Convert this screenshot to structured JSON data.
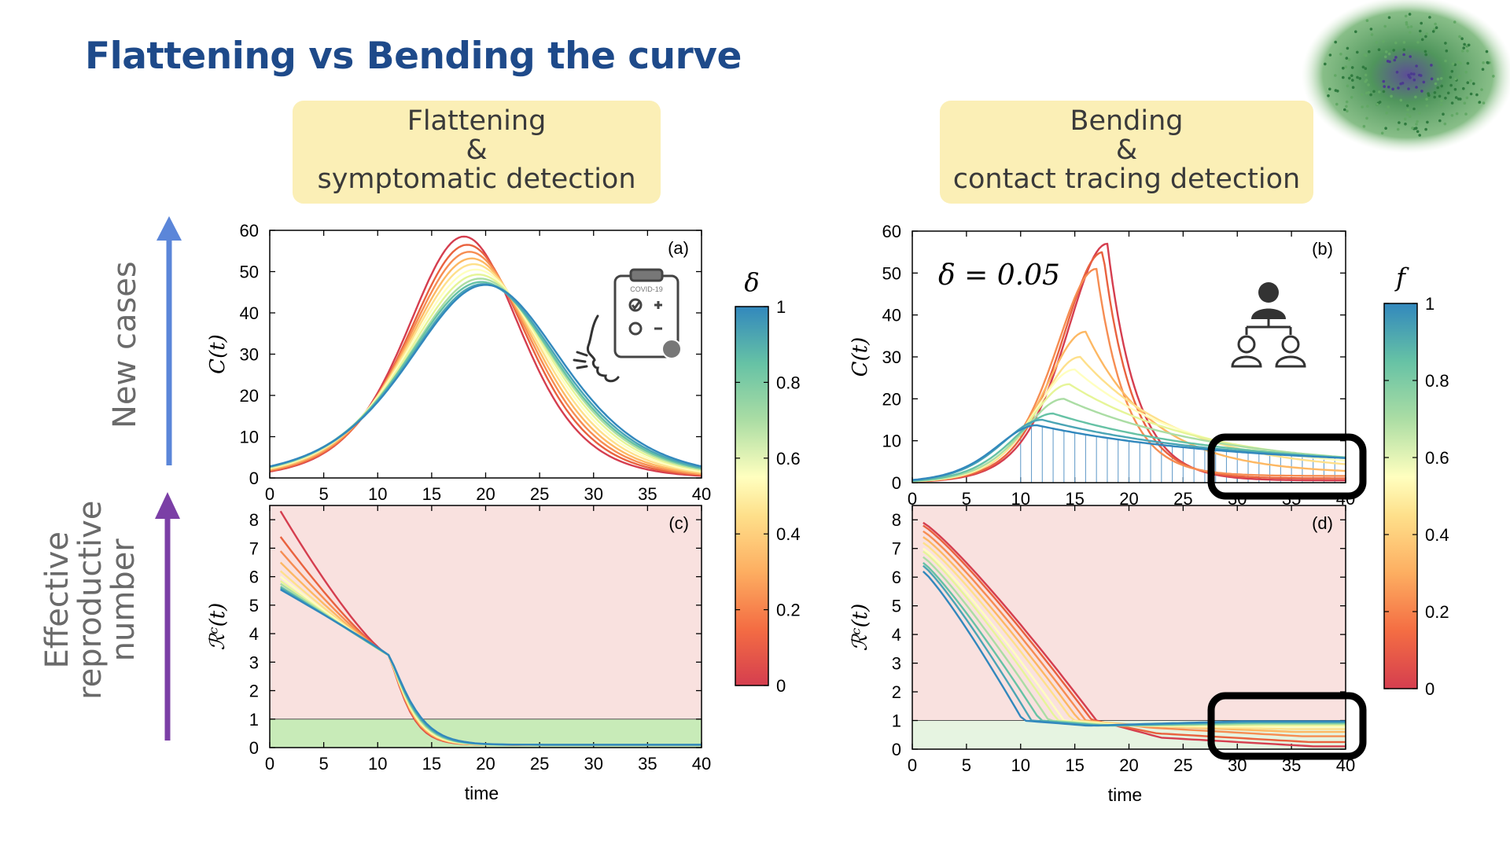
{
  "title": "Flattening vs Bending the curve",
  "pills": {
    "left": [
      "Flattening",
      "&",
      "symptomatic detection"
    ],
    "right": [
      "Bending",
      "&",
      "contact tracing detection"
    ]
  },
  "side_labels": {
    "top": "New cases",
    "bottom": [
      "Effective",
      "reproductive",
      "number"
    ]
  },
  "colors": {
    "title": "#1e4a8a",
    "pill_bg": "#fbefb6",
    "arrow_top": "#5b86d9",
    "arrow_bottom": "#7b3fa6",
    "red_zone": "#f9e1df",
    "green_zone": "#c8ebb8",
    "green_zone_light": "#e6f4e1"
  },
  "icons": [
    "network-image-icon",
    "clipboard-icon",
    "face-cough-icon",
    "contact-tree-icon"
  ],
  "chart_data": [
    {
      "type": "line",
      "panel_label": "(a)",
      "ylabel": "C(t)",
      "xlabel": "",
      "xlim": [
        0,
        40
      ],
      "ylim": [
        0,
        60
      ],
      "xticks": [
        "0",
        "5",
        "10",
        "15",
        "20",
        "25",
        "30",
        "35",
        "40"
      ],
      "yticks": [
        "0",
        "10",
        "20",
        "30",
        "40",
        "50",
        "60"
      ],
      "series_param": "δ",
      "series": [
        {
          "param": 0.0,
          "peak_t": 18.0,
          "peak": 58.5,
          "width": 3.6
        },
        {
          "param": 0.1,
          "peak_t": 18.3,
          "peak": 56.5,
          "width": 3.75
        },
        {
          "param": 0.2,
          "peak_t": 18.5,
          "peak": 54.8,
          "width": 3.9
        },
        {
          "param": 0.3,
          "peak_t": 18.7,
          "peak": 53.2,
          "width": 4.05
        },
        {
          "param": 0.4,
          "peak_t": 18.9,
          "peak": 51.8,
          "width": 4.2
        },
        {
          "param": 0.5,
          "peak_t": 19.1,
          "peak": 50.5,
          "width": 4.33
        },
        {
          "param": 0.6,
          "peak_t": 19.3,
          "peak": 49.3,
          "width": 4.45
        },
        {
          "param": 0.7,
          "peak_t": 19.5,
          "peak": 48.3,
          "width": 4.55
        },
        {
          "param": 0.8,
          "peak_t": 19.6,
          "peak": 47.5,
          "width": 4.65
        },
        {
          "param": 0.9,
          "peak_t": 19.8,
          "peak": 47.0,
          "width": 4.72
        },
        {
          "param": 1.0,
          "peak_t": 20.0,
          "peak": 46.8,
          "width": 4.8
        }
      ]
    },
    {
      "type": "line",
      "panel_label": "(b)",
      "annotation": "δ = 0.05",
      "ylabel": "C(t)",
      "xlabel": "",
      "xlim": [
        0,
        40
      ],
      "ylim": [
        0,
        60
      ],
      "xticks": [
        "0",
        "5",
        "10",
        "15",
        "20",
        "25",
        "30",
        "35",
        "40"
      ],
      "yticks": [
        "0",
        "10",
        "20",
        "30",
        "40",
        "50",
        "60"
      ],
      "series_param": "f",
      "series": [
        {
          "param": 0.0,
          "peak_t": 18.0,
          "peak": 57.0,
          "tail": 0.5
        },
        {
          "param": 0.1,
          "peak_t": 17.6,
          "peak": 55.0,
          "tail": 1.0
        },
        {
          "param": 0.2,
          "peak_t": 17.0,
          "peak": 51.0,
          "tail": 1.6
        },
        {
          "param": 0.3,
          "peak_t": 16.0,
          "peak": 36.0,
          "tail": 2.1
        },
        {
          "param": 0.4,
          "peak_t": 15.5,
          "peak": 30.0,
          "tail": 2.5
        },
        {
          "param": 0.5,
          "peak_t": 15.0,
          "peak": 27.0,
          "tail": 2.9
        },
        {
          "param": 0.6,
          "peak_t": 14.5,
          "peak": 23.5,
          "tail": 3.2
        },
        {
          "param": 0.7,
          "peak_t": 14.0,
          "peak": 20.0,
          "tail": 3.4
        },
        {
          "param": 0.8,
          "peak_t": 13.0,
          "peak": 16.5,
          "tail": 3.6
        },
        {
          "param": 0.9,
          "peak_t": 12.0,
          "peak": 15.0,
          "tail": 3.8
        },
        {
          "param": 1.0,
          "peak_t": 11.5,
          "peak": 13.7,
          "tail": 4.0
        }
      ]
    },
    {
      "type": "line",
      "panel_label": "(c)",
      "ylabel": "ℛᶜ(t)",
      "xlabel": "time",
      "xlim": [
        0,
        40
      ],
      "ylim": [
        0,
        8.5
      ],
      "xticks": [
        "0",
        "5",
        "10",
        "15",
        "20",
        "25",
        "30",
        "35",
        "40"
      ],
      "yticks": [
        "0",
        "1",
        "2",
        "3",
        "4",
        "5",
        "6",
        "7",
        "8"
      ],
      "threshold": 1,
      "series_param": "δ",
      "series": [
        {
          "param": 0.0,
          "r0": 8.3,
          "cross_t": 17.5
        },
        {
          "param": 0.1,
          "r0": 7.4,
          "cross_t": 17.8
        },
        {
          "param": 0.2,
          "r0": 6.9,
          "cross_t": 18.0
        },
        {
          "param": 0.3,
          "r0": 6.5,
          "cross_t": 18.2
        },
        {
          "param": 0.4,
          "r0": 6.2,
          "cross_t": 18.4
        },
        {
          "param": 0.5,
          "r0": 6.0,
          "cross_t": 18.6
        },
        {
          "param": 0.6,
          "r0": 5.85,
          "cross_t": 18.8
        },
        {
          "param": 0.7,
          "r0": 5.75,
          "cross_t": 19.0
        },
        {
          "param": 0.8,
          "r0": 5.65,
          "cross_t": 19.2
        },
        {
          "param": 0.9,
          "r0": 5.6,
          "cross_t": 19.4
        },
        {
          "param": 1.0,
          "r0": 5.55,
          "cross_t": 19.6
        }
      ]
    },
    {
      "type": "line",
      "panel_label": "(d)",
      "ylabel": "ℛᶜ(t)",
      "xlabel": "time",
      "xlim": [
        0,
        40
      ],
      "ylim": [
        0,
        8.5
      ],
      "xticks": [
        "0",
        "5",
        "10",
        "15",
        "20",
        "25",
        "30",
        "35",
        "40"
      ],
      "yticks": [
        "0",
        "1",
        "2",
        "3",
        "4",
        "5",
        "6",
        "7",
        "8"
      ],
      "threshold": 1,
      "series_param": "f",
      "series": [
        {
          "param": 0.0,
          "r0": 7.9,
          "cross_t": 17.0,
          "final": 0.1
        },
        {
          "param": 0.1,
          "r0": 7.8,
          "cross_t": 16.6,
          "final": 0.25
        },
        {
          "param": 0.2,
          "r0": 7.6,
          "cross_t": 16.0,
          "final": 0.45
        },
        {
          "param": 0.3,
          "r0": 7.4,
          "cross_t": 15.4,
          "final": 0.6
        },
        {
          "param": 0.4,
          "r0": 7.2,
          "cross_t": 14.8,
          "final": 0.7
        },
        {
          "param": 0.5,
          "r0": 7.0,
          "cross_t": 14.0,
          "final": 0.78
        },
        {
          "param": 0.6,
          "r0": 6.9,
          "cross_t": 13.4,
          "final": 0.84
        },
        {
          "param": 0.7,
          "r0": 6.7,
          "cross_t": 12.6,
          "final": 0.88
        },
        {
          "param": 0.8,
          "r0": 6.5,
          "cross_t": 11.8,
          "final": 0.92
        },
        {
          "param": 0.9,
          "r0": 6.4,
          "cross_t": 11.0,
          "final": 0.95
        },
        {
          "param": 1.0,
          "r0": 6.2,
          "cross_t": 10.2,
          "final": 0.97
        }
      ]
    }
  ],
  "colorbars": [
    {
      "label": "δ",
      "ticks": [
        "0",
        "0.2",
        "0.4",
        "0.6",
        "0.8",
        "1"
      ],
      "range": [
        0,
        1
      ]
    },
    {
      "label": "f",
      "ticks": [
        "0",
        "0.2",
        "0.4",
        "0.6",
        "0.8",
        "1"
      ],
      "range": [
        0,
        1
      ]
    }
  ],
  "palette": [
    "#d53e4f",
    "#e9623f",
    "#f68d52",
    "#fdb863",
    "#fee08b",
    "#ffffbf",
    "#e6f598",
    "#abdda4",
    "#66c2a5",
    "#4aa5b5",
    "#3288bd"
  ]
}
